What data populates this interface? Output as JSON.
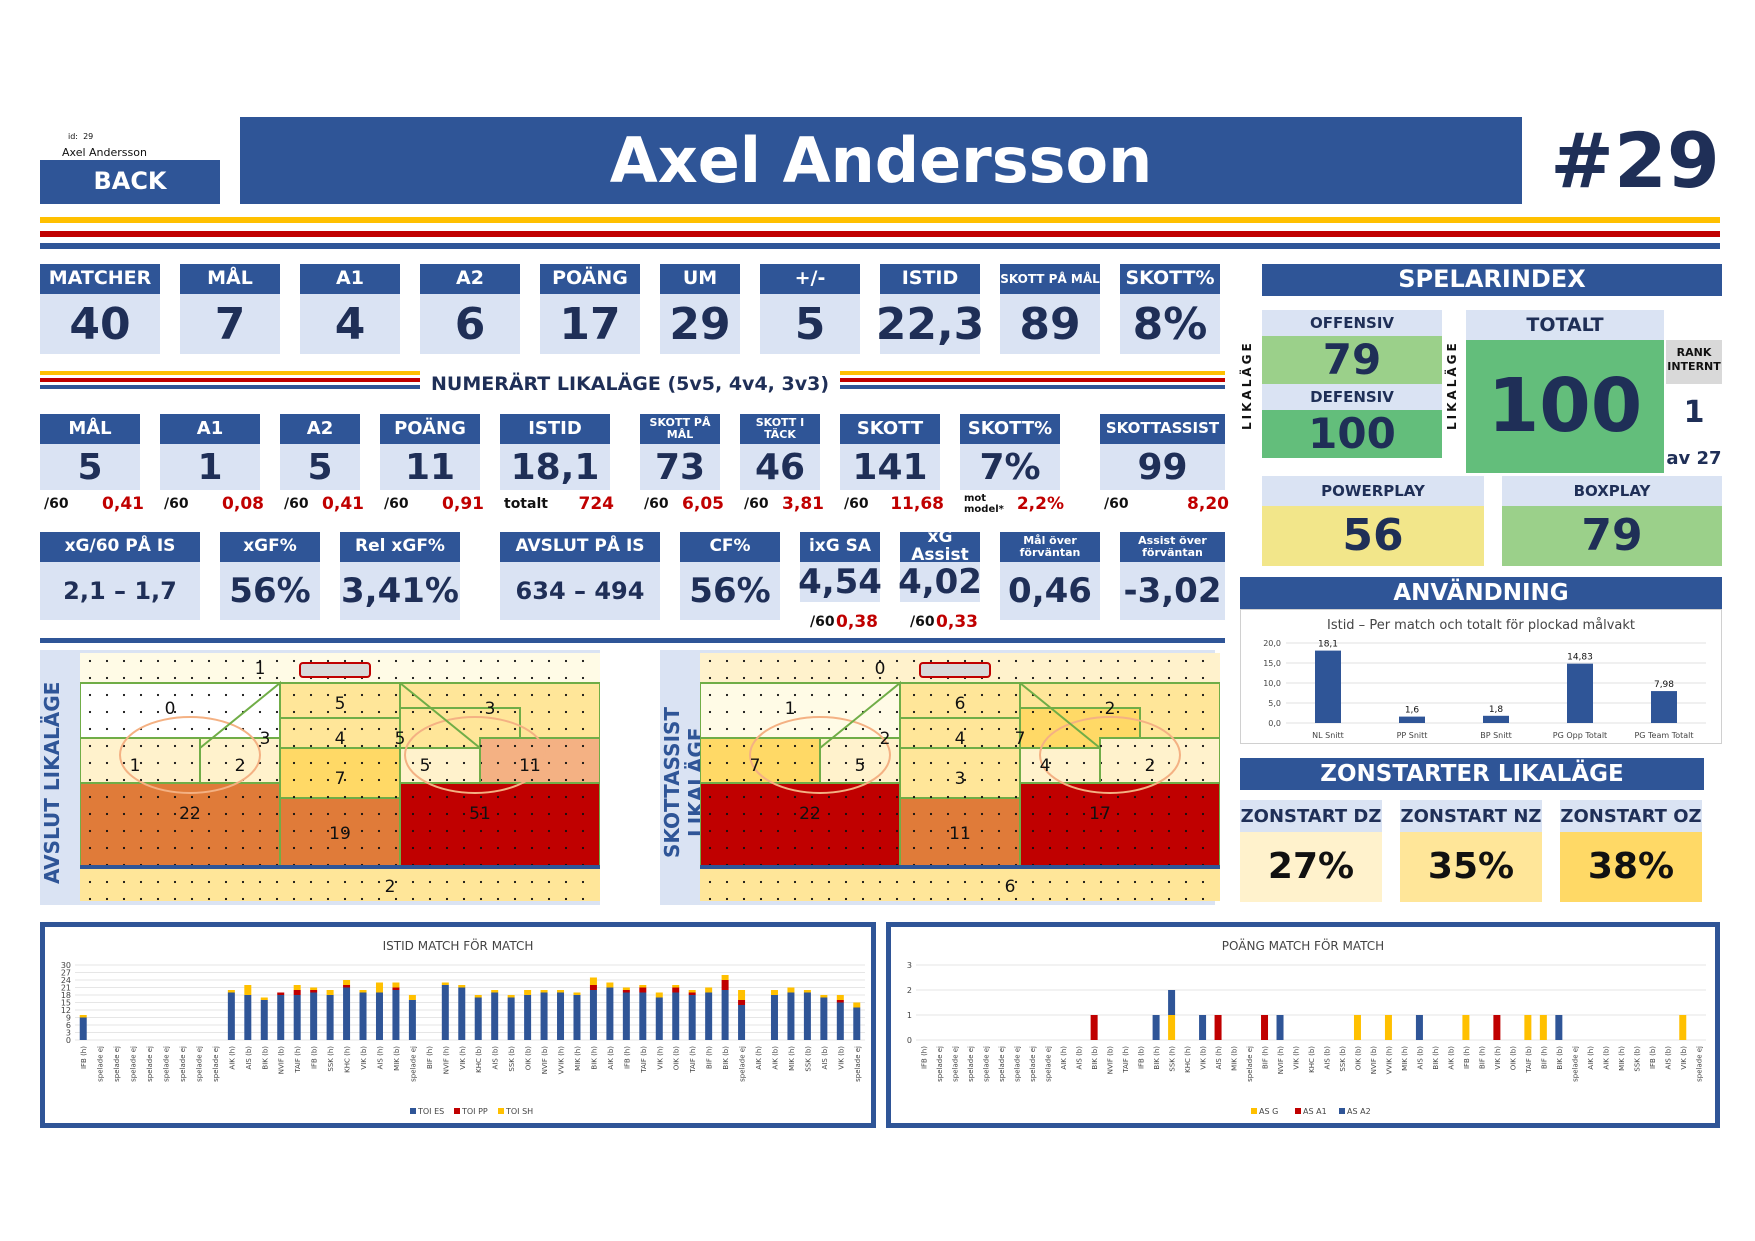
{
  "header": {
    "id_label": "id:",
    "id_value": "29",
    "small_name": "Axel Andersson",
    "back_label": "BACK",
    "player_name": "Axel Andersson",
    "jersey": "#29"
  },
  "stats_row1": [
    {
      "label": "MATCHER",
      "value": "40"
    },
    {
      "label": "MÅL",
      "value": "7"
    },
    {
      "label": "A1",
      "value": "4"
    },
    {
      "label": "A2",
      "value": "6"
    },
    {
      "label": "POÄNG",
      "value": "17"
    },
    {
      "label": "UM",
      "value": "29"
    },
    {
      "label": "+/-",
      "value": "5"
    },
    {
      "label": "ISTID",
      "value": "22,3"
    },
    {
      "label": "SKOTT PÅ MÅL",
      "value": "89"
    },
    {
      "label": "SKOTT%",
      "value": "8%"
    }
  ],
  "even_strength_title": "NUMERÄRT LIKALÄGE (5v5, 4v4, 3v3)",
  "stats_row2": [
    {
      "label": "MÅL",
      "value": "5",
      "sub_label": "/60",
      "sub_value": "0,41"
    },
    {
      "label": "A1",
      "value": "1",
      "sub_label": "/60",
      "sub_value": "0,08"
    },
    {
      "label": "A2",
      "value": "5",
      "sub_label": "/60",
      "sub_value": "0,41"
    },
    {
      "label": "POÄNG",
      "value": "11",
      "sub_label": "/60",
      "sub_value": "0,91"
    },
    {
      "label": "ISTID",
      "value": "18,1",
      "sub_label": "totalt",
      "sub_value": "724"
    },
    {
      "label": "SKOTT PÅ MÅL",
      "value": "73",
      "sub_label": "/60",
      "sub_value": "6,05"
    },
    {
      "label": "SKOTT I TÄCK",
      "value": "46",
      "sub_label": "/60",
      "sub_value": "3,81"
    },
    {
      "label": "SKOTT",
      "value": "141",
      "sub_label": "/60",
      "sub_value": "11,68"
    },
    {
      "label": "SKOTT%",
      "value": "7%",
      "sub_label": "mot model*",
      "sub_value": "2,2%"
    },
    {
      "label": "SKOTTASSIST",
      "value": "99",
      "sub_label": "/60",
      "sub_value": "8,20"
    }
  ],
  "stats_row3": [
    {
      "label": "xG/60 PÅ IS",
      "value": "2,1 – 1,7"
    },
    {
      "label": "xGF%",
      "value": "56%"
    },
    {
      "label": "Rel xGF%",
      "value": "3,41%"
    },
    {
      "label": "AVSLUT PÅ IS",
      "value": "634 – 494"
    },
    {
      "label": "CF%",
      "value": "56%"
    },
    {
      "label": "ixG SA",
      "value": "4,54",
      "sub_label": "/60",
      "sub_value": "0,38"
    },
    {
      "label": "xG Assist",
      "value": "4,02",
      "sub_label": "/60",
      "sub_value": "0,33"
    },
    {
      "label": "Mål över förväntan",
      "value": "0,46"
    },
    {
      "label": "Assist över förväntan",
      "value": "-3,02"
    }
  ],
  "index": {
    "title": "SPELARINDEX",
    "side_label": "LIKALÄGE",
    "offensiv_label": "OFFENSIV",
    "offensiv": "79",
    "defensiv_label": "DEFENSIV",
    "defensiv": "100",
    "totalt_label": "TOTALT",
    "totalt": "100",
    "rank_label": "RANK INTERNT",
    "rank": "1",
    "rank_of": "av 27",
    "powerplay_label": "POWERPLAY",
    "powerplay": "56",
    "boxplay_label": "BOXPLAY",
    "boxplay": "79",
    "colors": {
      "green": "#63be7b",
      "lightgreen": "#9bd08a",
      "yellow": "#f2e68a"
    }
  },
  "usage": {
    "title": "ANVÄNDNING",
    "chart_title": "Istid – Per match och totalt för plockad målvakt"
  },
  "zones": {
    "title": "ZONSTARTER LIKALÄGE",
    "items": [
      {
        "label": "ZONSTART DZ",
        "value": "27%"
      },
      {
        "label": "ZONSTART NZ",
        "value": "35%"
      },
      {
        "label": "ZONSTART OZ",
        "value": "38%"
      }
    ]
  },
  "rinks": [
    {
      "title": "AVSLUT LIKALÄGE",
      "zones": [
        "1",
        "0",
        "5",
        "4",
        "3",
        "3",
        "5",
        "1",
        "2",
        "7",
        "5",
        "11",
        "22",
        "19",
        "51",
        "2"
      ]
    },
    {
      "title": "SKOTTASSIST LIKALÄGE",
      "zones": [
        "0",
        "1",
        "6",
        "4",
        "2",
        "2",
        "7",
        "7",
        "5",
        "3",
        "4",
        "2",
        "22",
        "11",
        "17",
        "6"
      ]
    }
  ],
  "chart_data": [
    {
      "type": "bar",
      "title": "Istid – Per match och totalt för plockad målvakt",
      "categories": [
        "NL Snitt",
        "PP Snitt",
        "BP Snitt",
        "PG Opp Totalt",
        "PG Team Totalt"
      ],
      "values": [
        18.1,
        1.6,
        1.8,
        14.83,
        7.98
      ],
      "data_labels": [
        "18,1",
        "1,6",
        "1,8",
        "14,83",
        "7,98"
      ],
      "ylim": [
        0,
        20
      ],
      "yticks": [
        "0,0",
        "5,0",
        "10,0",
        "15,0",
        "20,0"
      ]
    },
    {
      "type": "bar",
      "title": "ISTID MATCH FÖR MATCH",
      "stacked": true,
      "categories": [
        "IFB (h)",
        "spelade ej",
        "spelade ej",
        "spelade ej",
        "spelade ej",
        "spelade ej",
        "spelade ej",
        "spelade ej",
        "spelade ej",
        "AIK (h)",
        "AIS (b)",
        "BIK (b)",
        "NVIF (b)",
        "TAIF (h)",
        "IFB (b)",
        "SSK (h)",
        "KHC (h)",
        "VIK (b)",
        "AIS (h)",
        "MIK (b)",
        "spelade ej",
        "BIF (h)",
        "NVIF (h)",
        "VIK (h)",
        "KHC (b)",
        "AIS (b)",
        "SSK (b)",
        "OIK (b)",
        "NVIF (b)",
        "VVIK (h)",
        "MIK (h)",
        "BIK (h)",
        "AIK (b)",
        "IFB (h)",
        "TAIF (b)",
        "VIK (h)",
        "OIK (b)",
        "TAIF (h)",
        "BIF (h)",
        "BIK (b)",
        "spelade ej",
        "AIK (h)",
        "AIK (b)",
        "MIK (h)",
        "SSK (b)",
        "AIS (b)",
        "VIK (b)",
        "spelade ej"
      ],
      "series": [
        {
          "name": "TOI ES",
          "values": [
            9,
            0,
            0,
            0,
            0,
            0,
            0,
            0,
            0,
            19,
            18,
            16,
            18,
            18,
            19,
            18,
            21,
            19,
            19,
            20,
            16,
            0,
            22,
            21,
            17,
            19,
            17,
            18,
            19,
            19,
            18,
            20,
            21,
            19,
            19,
            17,
            19,
            18,
            19,
            20,
            14,
            0,
            18,
            19,
            19,
            17,
            15,
            13
          ]
        },
        {
          "name": "TOI PP",
          "values": [
            0,
            0,
            0,
            0,
            0,
            0,
            0,
            0,
            0,
            0,
            0,
            0,
            1,
            2,
            1,
            0,
            1,
            0,
            0,
            1,
            0,
            0,
            0,
            0,
            0,
            0,
            0,
            0,
            0,
            0,
            0,
            2,
            0,
            1,
            2,
            0,
            2,
            1,
            0,
            4,
            2,
            0,
            0,
            0,
            0,
            0,
            1,
            0
          ]
        },
        {
          "name": "TOI SH",
          "values": [
            1,
            0,
            0,
            0,
            0,
            0,
            0,
            0,
            0,
            1,
            4,
            1,
            0,
            2,
            1,
            2,
            2,
            1,
            4,
            2,
            2,
            0,
            1,
            1,
            1,
            1,
            1,
            2,
            1,
            1,
            1,
            3,
            2,
            1,
            1,
            2,
            1,
            1,
            2,
            2,
            4,
            0,
            2,
            2,
            1,
            1,
            2,
            2
          ]
        }
      ],
      "ylim": [
        0,
        30
      ],
      "yticks": [
        "0",
        "3",
        "6",
        "9",
        "12",
        "15",
        "18",
        "21",
        "24",
        "27",
        "30"
      ]
    },
    {
      "type": "bar",
      "title": "POÄNG MATCH FÖR MATCH",
      "stacked": true,
      "categories": [
        "IFB (h)",
        "spelade ej",
        "spelade ej",
        "spelade ej",
        "spelade ej",
        "spelade ej",
        "spelade ej",
        "spelade ej",
        "spelade ej",
        "AIK (h)",
        "AIS (b)",
        "BIK (b)",
        "NVIF (b)",
        "TAIF (h)",
        "IFB (b)",
        "BIK (h)",
        "SSK (h)",
        "KHC (h)",
        "VIK (b)",
        "AIS (h)",
        "MIK (b)",
        "spelade ej",
        "BIF (h)",
        "NVIF (h)",
        "VIK (h)",
        "KHC (b)",
        "AIS (b)",
        "SSK (b)",
        "OIK (b)",
        "NVIF (b)",
        "VVIK (h)",
        "MIK (h)",
        "AIS (b)",
        "BIK (h)",
        "AIK (b)",
        "IFB (h)",
        "BIF (h)",
        "VIK (h)",
        "OIK (b)",
        "TAIF (b)",
        "BIF (h)",
        "BIK (b)",
        "spelade ej",
        "AIK (h)",
        "AIK (b)",
        "MIK (h)",
        "SSK (b)",
        "IFB (b)",
        "AIS (b)",
        "VIK (b)",
        "spelade ej"
      ],
      "series": [
        {
          "name": "AS G",
          "values": [
            0,
            0,
            0,
            0,
            0,
            0,
            0,
            0,
            0,
            0,
            0,
            0,
            0,
            0,
            0,
            0,
            1,
            0,
            0,
            0,
            0,
            0,
            0,
            0,
            0,
            0,
            0,
            0,
            1,
            0,
            1,
            0,
            0,
            0,
            0,
            1,
            0,
            0,
            0,
            1,
            1,
            0,
            0,
            0,
            0,
            0,
            0,
            0,
            0,
            1,
            0
          ]
        },
        {
          "name": "AS A1",
          "values": [
            0,
            0,
            0,
            0,
            0,
            0,
            0,
            0,
            0,
            0,
            0,
            1,
            0,
            0,
            0,
            0,
            0,
            0,
            0,
            1,
            0,
            0,
            1,
            0,
            0,
            0,
            0,
            0,
            0,
            0,
            0,
            0,
            0,
            0,
            0,
            0,
            0,
            1,
            0,
            0,
            0,
            0,
            0,
            0,
            0,
            0,
            0,
            0,
            0,
            0,
            0
          ]
        },
        {
          "name": "AS A2",
          "values": [
            0,
            0,
            0,
            0,
            0,
            0,
            0,
            0,
            0,
            0,
            0,
            0,
            0,
            0,
            0,
            1,
            1,
            0,
            1,
            0,
            0,
            0,
            0,
            1,
            0,
            0,
            0,
            0,
            0,
            0,
            0,
            0,
            1,
            0,
            0,
            0,
            0,
            0,
            0,
            0,
            0,
            1,
            0,
            0,
            0,
            0,
            0,
            0,
            0,
            0,
            0
          ]
        }
      ],
      "ylim": [
        0,
        3
      ],
      "yticks": [
        "0",
        "1",
        "2",
        "3"
      ]
    }
  ]
}
